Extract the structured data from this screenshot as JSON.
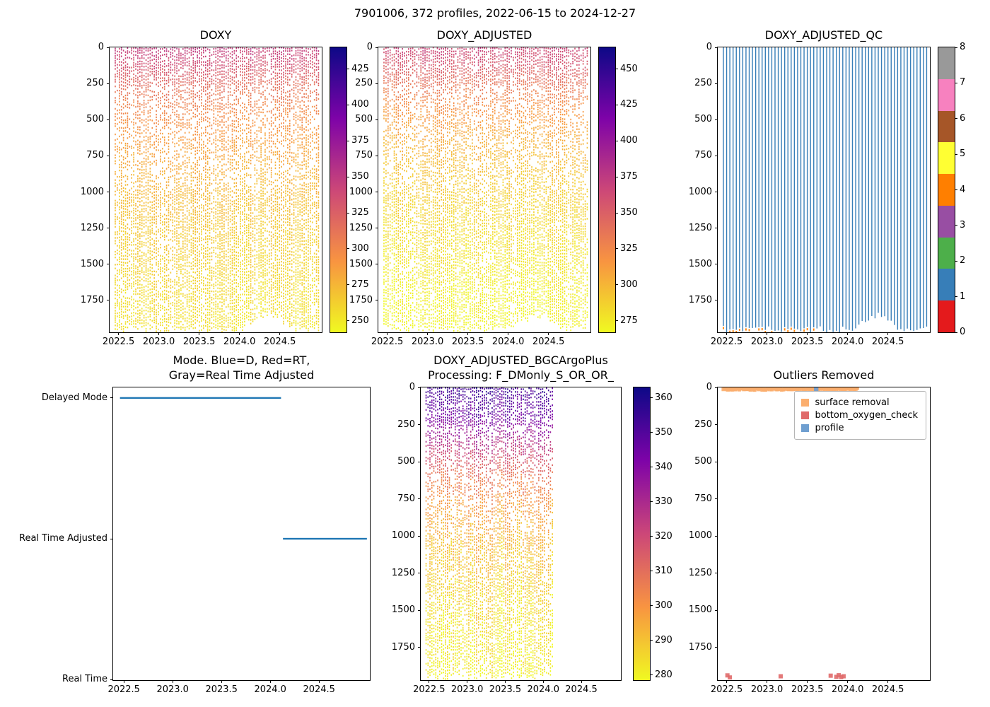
{
  "suptitle": "7901006, 372 profiles, 2022-06-15 to 2024-12-27",
  "chart_data": [
    {
      "id": "doxy",
      "type": "profile-scatter",
      "title": "DOXY",
      "x_lim": [
        2022.39,
        2025.02
      ],
      "x_tick_values": [
        2022.5,
        2023.0,
        2023.5,
        2024.0,
        2024.5
      ],
      "x_tick_labels": [
        "2022.5",
        "2023.0",
        "2023.5",
        "2024.0",
        "2024.5"
      ],
      "y_lim": [
        0,
        1970
      ],
      "y_tick_values": [
        0,
        250,
        500,
        750,
        1000,
        1250,
        1500,
        1750
      ],
      "y_tick_labels": [
        "0",
        "250",
        "500",
        "750",
        "1000",
        "1250",
        "1500",
        "1750"
      ],
      "colorbar": {
        "vmin": 242,
        "vmax": 440,
        "tick_values": [
          250,
          275,
          300,
          325,
          350,
          375,
          400,
          425
        ],
        "tick_labels": [
          "250",
          "275",
          "300",
          "325",
          "350",
          "375",
          "400",
          "425"
        ],
        "stops": [
          [
            0,
            "#f0f921"
          ],
          [
            0.25,
            "#f89441"
          ],
          [
            0.5,
            "#cc4778"
          ],
          [
            0.75,
            "#7e03a8"
          ],
          [
            1,
            "#0d0887"
          ]
        ]
      },
      "profiles": {
        "seed": 11,
        "t_start": 2022.46,
        "t_end": 2024.98,
        "count": 100,
        "value_by_depth": [
          [
            0,
            348
          ],
          [
            120,
            336
          ],
          [
            250,
            318
          ],
          [
            400,
            302
          ],
          [
            600,
            289
          ],
          [
            900,
            276
          ],
          [
            1300,
            265
          ],
          [
            1700,
            257
          ],
          [
            1950,
            253
          ]
        ],
        "bottom_by_time": [
          [
            2022.46,
            1950
          ],
          [
            2023.9,
            1952
          ],
          [
            2024.05,
            1945
          ],
          [
            2024.15,
            1895
          ],
          [
            2024.3,
            1855
          ],
          [
            2024.45,
            1865
          ],
          [
            2024.55,
            1890
          ],
          [
            2024.65,
            1945
          ],
          [
            2024.98,
            1955
          ]
        ]
      }
    },
    {
      "id": "doxy_adjusted",
      "type": "profile-scatter",
      "title": "DOXY_ADJUSTED",
      "x_lim": [
        2022.39,
        2025.02
      ],
      "x_tick_values": [
        2022.5,
        2023.0,
        2023.5,
        2024.0,
        2024.5
      ],
      "x_tick_labels": [
        "2022.5",
        "2023.0",
        "2023.5",
        "2024.0",
        "2024.5"
      ],
      "y_lim": [
        0,
        1970
      ],
      "y_tick_values": [
        0,
        250,
        500,
        750,
        1000,
        1250,
        1500,
        1750
      ],
      "y_tick_labels": [
        "0",
        "250",
        "500",
        "750",
        "1000",
        "1250",
        "1500",
        "1750"
      ],
      "colorbar": {
        "vmin": 267,
        "vmax": 465,
        "tick_values": [
          275,
          300,
          325,
          350,
          375,
          400,
          425,
          450
        ],
        "tick_labels": [
          "275",
          "300",
          "325",
          "350",
          "375",
          "400",
          "425",
          "450"
        ],
        "stops": [
          [
            0,
            "#f0f921"
          ],
          [
            0.25,
            "#f89441"
          ],
          [
            0.5,
            "#cc4778"
          ],
          [
            0.75,
            "#7e03a8"
          ],
          [
            1,
            "#0d0887"
          ]
        ]
      },
      "profiles": {
        "seed": 12,
        "t_start": 2022.46,
        "t_end": 2024.98,
        "count": 100,
        "value_by_depth": [
          [
            0,
            368
          ],
          [
            120,
            356
          ],
          [
            250,
            338
          ],
          [
            400,
            320
          ],
          [
            600,
            306
          ],
          [
            900,
            292
          ],
          [
            1300,
            281
          ],
          [
            1700,
            272
          ],
          [
            1950,
            268
          ]
        ],
        "bottom_by_time": [
          [
            2022.46,
            1950
          ],
          [
            2023.9,
            1952
          ],
          [
            2024.05,
            1945
          ],
          [
            2024.15,
            1895
          ],
          [
            2024.3,
            1855
          ],
          [
            2024.45,
            1865
          ],
          [
            2024.55,
            1890
          ],
          [
            2024.65,
            1945
          ],
          [
            2024.98,
            1955
          ]
        ]
      }
    },
    {
      "id": "doxy_adjusted_qc",
      "type": "qc-lines",
      "title": "DOXY_ADJUSTED_QC",
      "x_lim": [
        2022.39,
        2025.02
      ],
      "x_tick_values": [
        2022.5,
        2023.0,
        2023.5,
        2024.0,
        2024.5
      ],
      "x_tick_labels": [
        "2022.5",
        "2023.0",
        "2023.5",
        "2024.0",
        "2024.5"
      ],
      "y_lim": [
        0,
        1970
      ],
      "y_tick_values": [
        0,
        250,
        500,
        750,
        1000,
        1250,
        1500,
        1750
      ],
      "y_tick_labels": [
        "0",
        "250",
        "500",
        "750",
        "1000",
        "1250",
        "1500",
        "1750"
      ],
      "colorbar": {
        "discrete": true,
        "colors": [
          "#e41a1c",
          "#377eb8",
          "#4daf4a",
          "#984ea3",
          "#ff7f00",
          "#ffff33",
          "#a65628",
          "#f781bf",
          "#999999"
        ],
        "tick_labels": [
          "0",
          "1",
          "2",
          "3",
          "4",
          "5",
          "6",
          "7",
          "8"
        ]
      },
      "lines": {
        "seed": 7,
        "t_start": 2022.46,
        "t_end": 2024.98,
        "count": 64,
        "color": "#377eb8",
        "bottom_flag_color": "#ff7f00",
        "bottom_flag_t_max": 2023.6,
        "bottom_by_time": [
          [
            2022.46,
            1950
          ],
          [
            2023.9,
            1952
          ],
          [
            2024.05,
            1945
          ],
          [
            2024.15,
            1895
          ],
          [
            2024.3,
            1855
          ],
          [
            2024.45,
            1865
          ],
          [
            2024.55,
            1890
          ],
          [
            2024.65,
            1945
          ],
          [
            2024.98,
            1955
          ]
        ]
      }
    },
    {
      "id": "mode",
      "type": "mode-lines",
      "title": "Mode. Blue=D, Red=RT,\nGray=Real Time Adjusted",
      "x_lim": [
        2022.39,
        2025.02
      ],
      "x_tick_values": [
        2022.5,
        2023.0,
        2023.5,
        2024.0,
        2024.5
      ],
      "x_tick_labels": [
        "2022.5",
        "2023.0",
        "2023.5",
        "2024.0",
        "2024.5"
      ],
      "categories": [
        "Delayed Mode",
        "Real Time Adjusted",
        "Real Time"
      ],
      "line_color": "#1f77b4",
      "segments": [
        {
          "category_index": 0,
          "x0": 2022.46,
          "x1": 2024.11
        },
        {
          "category_index": 1,
          "x0": 2024.13,
          "x1": 2024.99
        }
      ]
    },
    {
      "id": "doxy_adjusted_bgcargoplus",
      "type": "profile-scatter",
      "title": "DOXY_ADJUSTED_BGCArgoPlus\nProcessing: F_DMonly_S_OR_OR_",
      "x_lim": [
        2022.39,
        2025.02
      ],
      "x_tick_values": [
        2022.5,
        2023.0,
        2023.5,
        2024.0,
        2024.5
      ],
      "x_tick_labels": [
        "2022.5",
        "2023.0",
        "2023.5",
        "2024.0",
        "2024.5"
      ],
      "y_lim": [
        0,
        1970
      ],
      "y_tick_values": [
        0,
        250,
        500,
        750,
        1000,
        1250,
        1500,
        1750
      ],
      "y_tick_labels": [
        "0",
        "250",
        "500",
        "750",
        "1000",
        "1250",
        "1500",
        "1750"
      ],
      "colorbar": {
        "vmin": 278.5,
        "vmax": 363,
        "tick_values": [
          280,
          290,
          300,
          310,
          320,
          330,
          340,
          350,
          360
        ],
        "tick_labels": [
          "280",
          "290",
          "300",
          "310",
          "320",
          "330",
          "340",
          "350",
          "360"
        ],
        "stops": [
          [
            0,
            "#f0f921"
          ],
          [
            0.25,
            "#f89441"
          ],
          [
            0.5,
            "#cc4778"
          ],
          [
            0.75,
            "#7e03a8"
          ],
          [
            1,
            "#0d0887"
          ]
        ]
      },
      "profiles": {
        "seed": 13,
        "t_start": 2022.46,
        "t_end": 2024.12,
        "count": 66,
        "value_by_depth": [
          [
            0,
            354
          ],
          [
            200,
            345
          ],
          [
            400,
            325
          ],
          [
            600,
            308
          ],
          [
            800,
            298
          ],
          [
            1100,
            291
          ],
          [
            1500,
            285
          ],
          [
            1950,
            280
          ]
        ],
        "bottom_by_time": [
          [
            2022.46,
            1950
          ],
          [
            2024.12,
            1952
          ]
        ]
      }
    },
    {
      "id": "outliers_removed",
      "type": "outlier-scatter",
      "title": "Outliers Removed",
      "seed": 5,
      "x_lim": [
        2022.39,
        2025.02
      ],
      "x_tick_values": [
        2022.5,
        2023.0,
        2023.5,
        2024.0,
        2024.5
      ],
      "x_tick_labels": [
        "2022.5",
        "2023.0",
        "2023.5",
        "2024.0",
        "2024.5"
      ],
      "y_lim": [
        0,
        1970
      ],
      "y_tick_values": [
        0,
        250,
        500,
        750,
        1000,
        1250,
        1500,
        1750
      ],
      "y_tick_labels": [
        "0",
        "250",
        "500",
        "750",
        "1000",
        "1250",
        "1500",
        "1750"
      ],
      "legend": [
        {
          "label": "surface removal",
          "color": "#fbae6e"
        },
        {
          "label": "bottom_oxygen_check",
          "color": "#e06a6a"
        },
        {
          "label": "profile",
          "color": "#6f9fd0"
        }
      ],
      "surface_run": {
        "x0": 2022.46,
        "x1": 2024.12,
        "depth": 10
      },
      "profile_points": [
        {
          "x": 2023.61,
          "depth": 10
        }
      ],
      "bottom_points": [
        [
          2022.51,
          1938
        ],
        [
          2022.54,
          1952
        ],
        [
          2023.17,
          1944
        ],
        [
          2023.79,
          1940
        ],
        [
          2023.86,
          1948
        ],
        [
          2023.89,
          1937
        ],
        [
          2023.92,
          1950
        ],
        [
          2023.95,
          1944
        ]
      ]
    }
  ]
}
